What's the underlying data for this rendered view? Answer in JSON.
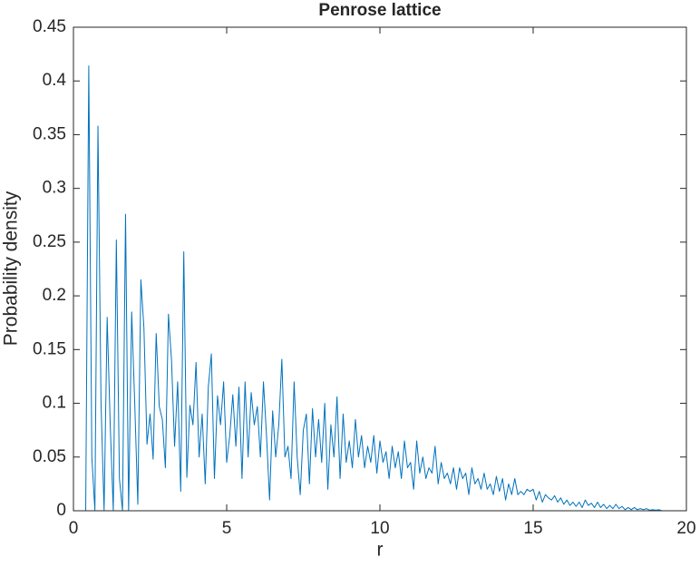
{
  "chart_data": {
    "type": "line",
    "title": "Penrose lattice",
    "x_label": "r",
    "y_label": "Probability density",
    "x": [
      0,
      0.1,
      0.2,
      0.3,
      0.4,
      0.5,
      0.6,
      0.7,
      0.8,
      0.9,
      1,
      1.1,
      1.2,
      1.3,
      1.4,
      1.5,
      1.6,
      1.7,
      1.8,
      1.9,
      2,
      2.1,
      2.2,
      2.3,
      2.4,
      2.5,
      2.6,
      2.7,
      2.8,
      2.9,
      3,
      3.1,
      3.2,
      3.3,
      3.4,
      3.5,
      3.6,
      3.7,
      3.8,
      3.9,
      4,
      4.1,
      4.2,
      4.3,
      4.4,
      4.5,
      4.6,
      4.7,
      4.8,
      4.9,
      5,
      5.1,
      5.2,
      5.3,
      5.4,
      5.5,
      5.6,
      5.7,
      5.8,
      5.9,
      6,
      6.1,
      6.2,
      6.3,
      6.4,
      6.5,
      6.6,
      6.7,
      6.8,
      6.9,
      7,
      7.1,
      7.2,
      7.3,
      7.4,
      7.5,
      7.6,
      7.7,
      7.8,
      7.9,
      8,
      8.1,
      8.2,
      8.3,
      8.4,
      8.5,
      8.6,
      8.7,
      8.8,
      8.9,
      9,
      9.1,
      9.2,
      9.3,
      9.4,
      9.5,
      9.6,
      9.7,
      9.8,
      9.9,
      10,
      10.1,
      10.2,
      10.3,
      10.4,
      10.5,
      10.6,
      10.7,
      10.8,
      10.9,
      11,
      11.1,
      11.2,
      11.3,
      11.4,
      11.5,
      11.6,
      11.7,
      11.8,
      11.9,
      12,
      12.1,
      12.2,
      12.3,
      12.4,
      12.5,
      12.6,
      12.7,
      12.8,
      12.9,
      13,
      13.1,
      13.2,
      13.3,
      13.4,
      13.5,
      13.6,
      13.7,
      13.8,
      13.9,
      14,
      14.1,
      14.2,
      14.3,
      14.4,
      14.5,
      14.6,
      14.7,
      14.8,
      14.9,
      15,
      15.1,
      15.2,
      15.3,
      15.4,
      15.5,
      15.6,
      15.7,
      15.8,
      15.9,
      16,
      16.1,
      16.2,
      16.3,
      16.4,
      16.5,
      16.6,
      16.7,
      16.8,
      16.9,
      17,
      17.1,
      17.2,
      17.3,
      17.4,
      17.5,
      17.6,
      17.7,
      17.8,
      17.9,
      18,
      18.1,
      18.2,
      18.3,
      18.4,
      18.5,
      18.6,
      18.7,
      18.8,
      18.9,
      19,
      19.1,
      19.2,
      19.3,
      19.4,
      19.5,
      19.6,
      19.7,
      19.8,
      19.9,
      20
    ],
    "series": [
      {
        "color": "#0072bd",
        "values": [
          0,
          0,
          0,
          0,
          0,
          0.414,
          0.05,
          0,
          0.358,
          0.1,
          0,
          0.18,
          0.08,
          0,
          0.252,
          0.03,
          0,
          0.276,
          0,
          0.185,
          0.1,
          0.006,
          0.215,
          0.17,
          0.062,
          0.09,
          0.048,
          0.165,
          0.097,
          0.085,
          0.04,
          0.183,
          0.14,
          0.06,
          0.12,
          0.018,
          0.241,
          0.031,
          0.098,
          0.08,
          0.138,
          0.05,
          0.09,
          0.025,
          0.115,
          0.146,
          0.03,
          0.107,
          0.08,
          0.12,
          0.045,
          0.07,
          0.108,
          0.06,
          0.115,
          0.03,
          0.12,
          0.05,
          0.11,
          0.08,
          0.097,
          0.05,
          0.12,
          0.07,
          0.01,
          0.093,
          0.05,
          0.08,
          0.141,
          0.05,
          0.06,
          0.03,
          0.12,
          0.05,
          0.015,
          0.075,
          0.09,
          0.025,
          0.095,
          0.05,
          0.085,
          0.045,
          0.1,
          0.02,
          0.08,
          0.05,
          0.106,
          0.03,
          0.09,
          0.045,
          0.065,
          0.04,
          0.085,
          0.05,
          0.07,
          0.04,
          0.06,
          0.045,
          0.07,
          0.035,
          0.065,
          0.045,
          0.055,
          0.03,
          0.06,
          0.04,
          0.055,
          0.03,
          0.065,
          0.04,
          0.045,
          0.02,
          0.065,
          0.035,
          0.05,
          0.03,
          0.04,
          0.035,
          0.06,
          0.025,
          0.045,
          0.03,
          0.035,
          0.025,
          0.04,
          0.02,
          0.04,
          0.03,
          0.035,
          0.015,
          0.04,
          0.025,
          0.03,
          0.02,
          0.035,
          0.02,
          0.025,
          0.015,
          0.032,
          0.018,
          0.03,
          0.01,
          0.025,
          0.015,
          0.03,
          0.015,
          0.018,
          0.015,
          0.02,
          0.018,
          0.02,
          0.01,
          0.018,
          0.008,
          0.015,
          0.012,
          0.01,
          0.014,
          0.008,
          0.012,
          0.006,
          0.01,
          0.005,
          0.008,
          0.004,
          0.008,
          0.003,
          0.01,
          0.005,
          0.007,
          0.003,
          0.008,
          0.003,
          0.006,
          0.002,
          0.005,
          0.002,
          0.006,
          0.002,
          0.004,
          0.001,
          0.003,
          0.001,
          0.003,
          0.001,
          0.002,
          0.001,
          0.002,
          0.0005,
          0.001,
          0.0005,
          0.001,
          0,
          0,
          0,
          0,
          0,
          0,
          0,
          0,
          0
        ]
      }
    ],
    "xlim": [
      0,
      20
    ],
    "xticks": [
      0,
      5,
      10,
      15,
      20
    ],
    "ylim": [
      0,
      0.45
    ],
    "yticks": [
      0,
      0.05,
      0.1,
      0.15,
      0.2,
      0.25,
      0.3,
      0.35,
      0.4,
      0.45
    ]
  }
}
